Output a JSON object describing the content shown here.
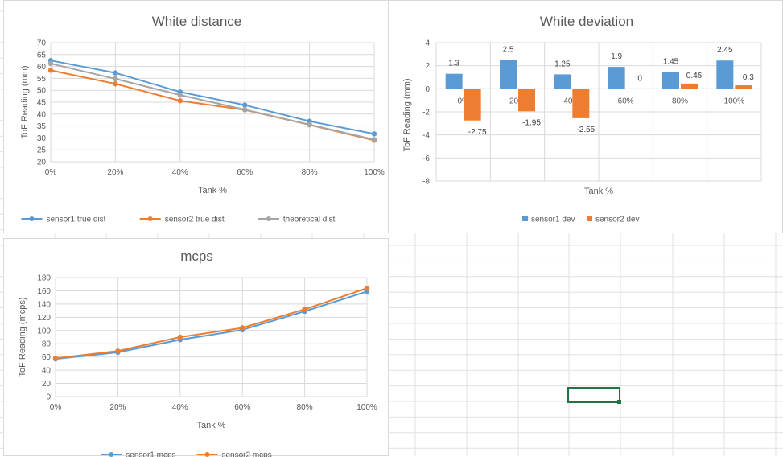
{
  "chart_data": [
    {
      "type": "line",
      "title": "White distance",
      "xlabel": "Tank %",
      "ylabel": "ToF Reading (mm)",
      "categories": [
        "0%",
        "20%",
        "40%",
        "60%",
        "80%",
        "100%"
      ],
      "ylim": [
        20,
        70
      ],
      "yticks": [
        20,
        25,
        30,
        35,
        40,
        45,
        50,
        55,
        60,
        65,
        70
      ],
      "grid": true,
      "legend": "bottom",
      "series": [
        {
          "name": "sensor1 true dist",
          "color": "#5b9bd5",
          "values": [
            62.5,
            57.3,
            49.3,
            43.8,
            37.0,
            31.7
          ]
        },
        {
          "name": "sensor2 true dist",
          "color": "#ed7d31",
          "values": [
            58.4,
            52.7,
            45.6,
            41.8,
            35.5,
            29.0
          ]
        },
        {
          "name": "theoretical dist",
          "color": "#a5a5a5",
          "values": [
            61.2,
            54.8,
            48.0,
            41.9,
            35.6,
            29.3
          ]
        }
      ]
    },
    {
      "type": "bar",
      "title": "White  deviation",
      "xlabel": "Tank %",
      "ylabel": "ToF Reading (mm)",
      "categories": [
        "0%",
        "20%",
        "40%",
        "60%",
        "80%",
        "100%"
      ],
      "ylim": [
        -8,
        4
      ],
      "yticks": [
        -8,
        -6,
        -4,
        -2,
        0,
        2,
        4
      ],
      "grid": true,
      "legend": "bottom",
      "series": [
        {
          "name": "sensor1 dev",
          "color": "#5b9bd5",
          "values": [
            1.3,
            2.5,
            1.25,
            1.9,
            1.45,
            2.45
          ],
          "labels": [
            "1.3",
            "2.5",
            "1.25",
            "1.9",
            "1.45",
            "2.45"
          ]
        },
        {
          "name": "sensor2 dev",
          "color": "#ed7d31",
          "values": [
            -2.75,
            -1.95,
            -2.55,
            0,
            0.45,
            0.3
          ],
          "labels": [
            "-2.75",
            "-1.95",
            "-2.55",
            "0",
            "0.45",
            "0.3"
          ]
        }
      ]
    },
    {
      "type": "line",
      "title": "mcps",
      "xlabel": "Tank %",
      "ylabel": "ToF Reading (mcps)",
      "categories": [
        "0%",
        "20%",
        "40%",
        "60%",
        "80%",
        "100%"
      ],
      "ylim": [
        0,
        180
      ],
      "yticks": [
        0,
        20,
        40,
        60,
        80,
        100,
        120,
        140,
        160,
        180
      ],
      "grid": true,
      "legend": "bottom",
      "series": [
        {
          "name": "sensor1 mcps",
          "color": "#5b9bd5",
          "values": [
            57,
            67,
            86,
            101,
            129,
            159
          ]
        },
        {
          "name": "sensor2 mcps",
          "color": "#ed7d31",
          "values": [
            58,
            69,
            90,
            104,
            132,
            164
          ]
        }
      ]
    }
  ]
}
